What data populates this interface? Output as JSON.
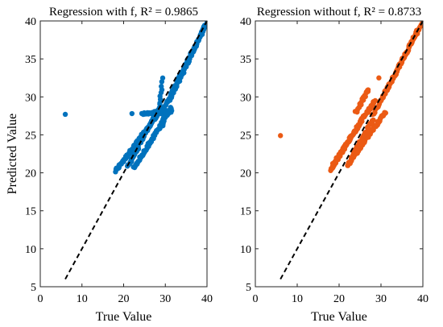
{
  "chart_data": [
    {
      "type": "scatter",
      "title": "Regression with f, R² = 0.9865",
      "xlabel": "True Value",
      "ylabel": "Predicted Value",
      "xlim": [
        0,
        40
      ],
      "ylim": [
        5,
        40
      ],
      "xticks": [
        "0",
        "10",
        "20",
        "30",
        "40"
      ],
      "yticks": [
        "5",
        "10",
        "15",
        "20",
        "25",
        "30",
        "35",
        "40"
      ],
      "color": "#0072BD",
      "reference_line": {
        "style": "dashed",
        "x": [
          6,
          40
        ],
        "y": [
          6,
          40
        ]
      },
      "bands": [
        {
          "x0": 18.0,
          "x1": 29.2,
          "y0": 20.2,
          "y1": 28.4,
          "n": 90
        },
        {
          "x0": 21.0,
          "x1": 28.2,
          "y0": 20.8,
          "y1": 28.3,
          "n": 55
        },
        {
          "x0": 22.5,
          "x1": 31.5,
          "y0": 20.6,
          "y1": 28.6,
          "n": 80
        },
        {
          "x0": 29.0,
          "x1": 40.0,
          "y0": 27.8,
          "y1": 39.8,
          "n": 75
        },
        {
          "x0": 31.0,
          "x1": 39.5,
          "y0": 29.5,
          "y1": 39.3,
          "n": 55
        },
        {
          "x0": 24.5,
          "x1": 31.5,
          "y0": 27.8,
          "y1": 28.1,
          "n": 30
        },
        {
          "x0": 28.5,
          "x1": 29.4,
          "y0": 28.5,
          "y1": 32.4,
          "n": 10
        },
        {
          "x0": 29.3,
          "x1": 30.2,
          "y0": 26.2,
          "y1": 28.8,
          "n": 8
        }
      ],
      "points": [
        {
          "x": 6.0,
          "y": 27.7
        },
        {
          "x": 22.0,
          "y": 27.8
        }
      ]
    },
    {
      "type": "scatter",
      "title": "Regression without f, R² = 0.8733",
      "xlabel": "True Value",
      "ylabel": "",
      "xlim": [
        0,
        40
      ],
      "ylim": [
        5,
        40
      ],
      "xticks": [
        "0",
        "10",
        "20",
        "30",
        "40"
      ],
      "yticks": [
        "5",
        "10",
        "15",
        "20",
        "25",
        "30",
        "35",
        "40"
      ],
      "color": "#EB5A14",
      "reference_line": {
        "style": "dashed",
        "x": [
          6,
          40
        ],
        "y": [
          6,
          40
        ]
      },
      "bands": [
        {
          "x0": 18.0,
          "x1": 25.5,
          "y0": 20.4,
          "y1": 27.0,
          "n": 65
        },
        {
          "x0": 18.5,
          "x1": 28.5,
          "y0": 21.0,
          "y1": 29.5,
          "n": 75
        },
        {
          "x0": 22.0,
          "x1": 31.0,
          "y0": 21.0,
          "y1": 28.0,
          "n": 70
        },
        {
          "x0": 23.0,
          "x1": 28.0,
          "y0": 22.0,
          "y1": 27.0,
          "n": 40
        },
        {
          "x0": 28.0,
          "x1": 39.8,
          "y0": 27.5,
          "y1": 39.7,
          "n": 75
        },
        {
          "x0": 30.5,
          "x1": 39.0,
          "y0": 30.0,
          "y1": 39.0,
          "n": 50
        },
        {
          "x0": 24.0,
          "x1": 27.0,
          "y0": 28.0,
          "y1": 31.0,
          "n": 20
        }
      ],
      "points": [
        {
          "x": 6.0,
          "y": 24.9
        },
        {
          "x": 29.5,
          "y": 32.5
        }
      ]
    }
  ]
}
